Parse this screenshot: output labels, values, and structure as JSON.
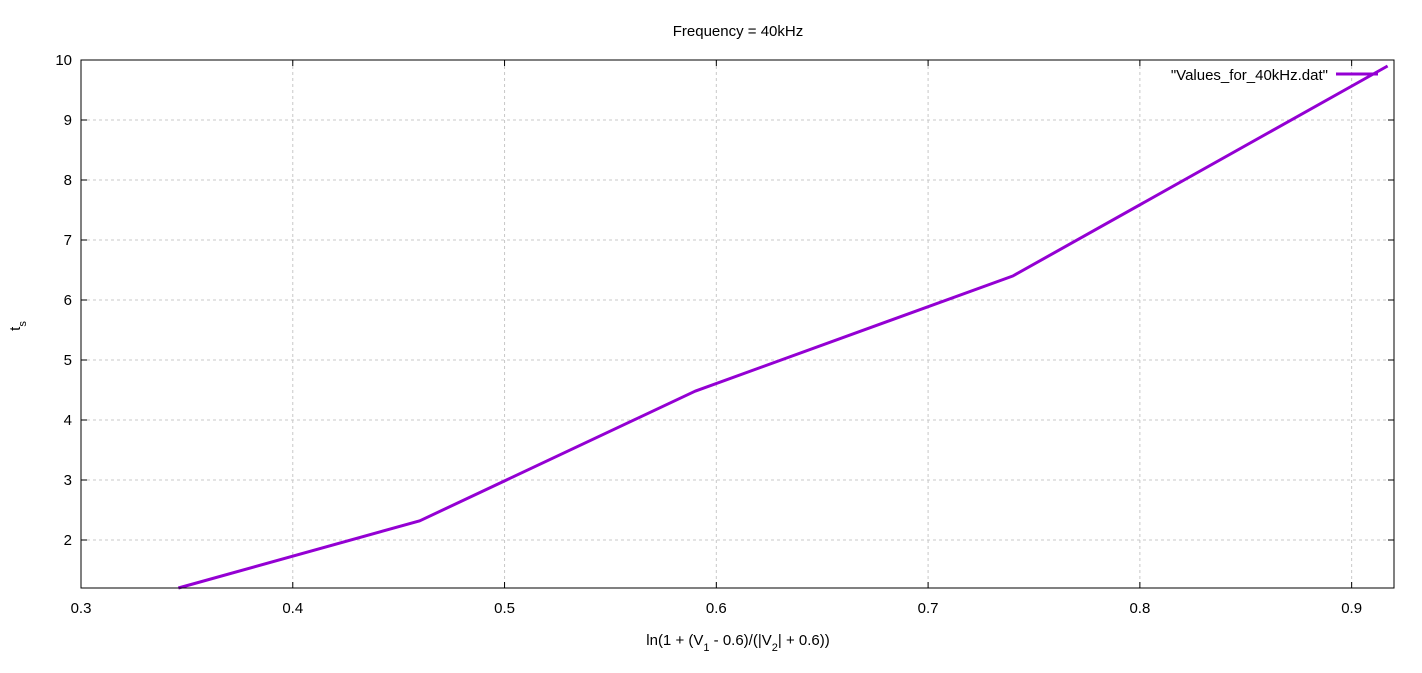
{
  "chart_data": {
    "type": "line",
    "title": "Frequency = 40kHz",
    "xlabel": {
      "parts": [
        {
          "text": "ln(1 + (V"
        },
        {
          "text": "1",
          "sub": true
        },
        {
          "text": " - 0.6)/(|V"
        },
        {
          "text": "2",
          "sub": true
        },
        {
          "text": "| + 0.6))"
        }
      ]
    },
    "ylabel": {
      "parts": [
        {
          "text": "t"
        },
        {
          "text": "s",
          "sub": true
        }
      ]
    },
    "xlim": [
      0.3,
      0.92
    ],
    "ylim": [
      1.2,
      10
    ],
    "xticks": [
      0.3,
      0.4,
      0.5,
      0.6,
      0.7,
      0.8,
      0.9
    ],
    "xtick_labels": [
      "0.3",
      "0.4",
      "0.5",
      "0.6",
      "0.7",
      "0.8",
      "0.9"
    ],
    "yticks": [
      2,
      3,
      4,
      5,
      6,
      7,
      8,
      9,
      10
    ],
    "ytick_labels": [
      "2",
      "3",
      "4",
      "5",
      "6",
      "7",
      "8",
      "9",
      "10"
    ],
    "grid": true,
    "legend_position": "top-right",
    "series": [
      {
        "name": "\"Values_for_40kHz.dat\"",
        "color": "#9400d3",
        "x": [
          0.346,
          0.46,
          0.59,
          0.74,
          0.917
        ],
        "y": [
          1.2,
          2.32,
          4.48,
          6.4,
          9.9
        ]
      }
    ]
  }
}
